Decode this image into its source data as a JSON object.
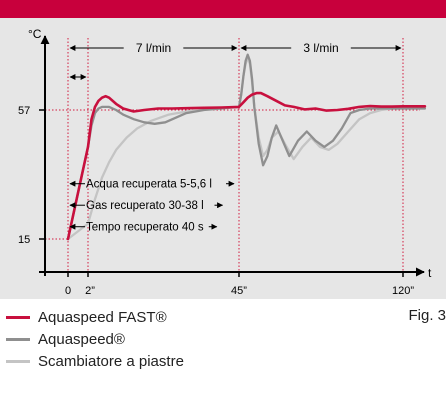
{
  "chart_data": {
    "type": "line",
    "ylabel": "°C",
    "xlabel": "t",
    "x_ticks": [
      {
        "value": 0,
        "label": "0"
      },
      {
        "value": 2,
        "label": "2”"
      },
      {
        "value": 45,
        "label": "45”"
      },
      {
        "value": 120,
        "label": "120”"
      }
    ],
    "y_ticks": [
      {
        "value": 15,
        "label": "15"
      },
      {
        "value": 57,
        "label": "57"
      }
    ],
    "xlim": [
      0,
      130
    ],
    "ylim": [
      0,
      80
    ],
    "flow_rates": [
      {
        "from": 0,
        "to": 45,
        "label": "7 l/min"
      },
      {
        "from": 45,
        "to": 120,
        "label": "3 l/min"
      }
    ],
    "annotations": [
      {
        "text": "Acqua recuperata 5-5,6 l",
        "y": 33
      },
      {
        "text": "Gas recuperato 30-38 l",
        "y": 26
      },
      {
        "text": "Tempo recuperato 40 s",
        "y": 19
      }
    ],
    "series": [
      {
        "name": "Aquaspeed FAST®",
        "color": "#c8103e",
        "x": [
          0,
          1,
          2,
          3,
          4,
          5,
          6,
          7,
          8,
          10,
          12,
          15,
          18,
          22,
          26,
          30,
          35,
          40,
          45,
          47,
          49,
          51,
          53,
          55,
          58,
          62,
          66,
          70,
          75,
          80,
          85,
          90,
          95,
          100,
          105,
          110,
          115,
          120,
          125,
          130
        ],
        "y": [
          15,
          30,
          45,
          54,
          58,
          60,
          61,
          61.5,
          61,
          59,
          57.5,
          56.5,
          57,
          57.5,
          57.5,
          57.6,
          57.7,
          57.8,
          58,
          59.5,
          61,
          62,
          62.5,
          62.5,
          61.5,
          60,
          58.5,
          58,
          57.2,
          57.5,
          56.8,
          57,
          57.4,
          58,
          58.3,
          58.1,
          58.1,
          58.2,
          58.2,
          58.2
        ]
      },
      {
        "name": "Aquaspeed®",
        "color": "#8f8f8f",
        "x": [
          0,
          1,
          2,
          3,
          4,
          5,
          6,
          8,
          10,
          12,
          15,
          18,
          21,
          24,
          27,
          30,
          35,
          40,
          45,
          46,
          47,
          48,
          49,
          50,
          51,
          52,
          54,
          56,
          58,
          60,
          62,
          65,
          68,
          72,
          76,
          80,
          84,
          88,
          92,
          96,
          100,
          105,
          110,
          115,
          120,
          125,
          130
        ],
        "y": [
          15,
          30,
          45,
          52,
          56,
          57.5,
          58,
          58,
          57,
          55.5,
          54,
          53,
          52.5,
          53,
          54.5,
          56,
          57,
          57.5,
          58,
          62,
          68,
          73,
          75,
          73,
          67,
          58,
          46,
          39,
          42,
          48,
          52,
          47,
          42,
          47,
          50,
          47,
          45,
          47,
          51,
          56,
          57,
          57.5,
          57.5,
          57.5,
          57.5,
          57.5,
          57.5
        ]
      },
      {
        "name": "Scambiatore a piastre",
        "color": "#c4c4c4",
        "x": [
          0,
          2,
          4,
          6,
          8,
          10,
          13,
          16,
          20,
          25,
          30,
          35,
          40,
          45,
          46,
          47,
          48,
          49,
          50,
          51,
          52,
          54,
          56,
          58,
          60,
          63,
          66,
          70,
          74,
          78,
          82,
          86,
          90,
          95,
          100,
          105,
          110,
          115,
          120,
          125,
          130
        ],
        "y": [
          15,
          20,
          28,
          35,
          40,
          44,
          48,
          51,
          53.5,
          55.5,
          56.5,
          57.2,
          57.7,
          58,
          62,
          68,
          72,
          74,
          72,
          66,
          58,
          48,
          42,
          44,
          48,
          50,
          46,
          41,
          45,
          48,
          45,
          44,
          46,
          50,
          54,
          56,
          57,
          57.5,
          57.5,
          57.5,
          57.5
        ]
      }
    ]
  },
  "legend": [
    {
      "label": "Aquaspeed FAST®",
      "color": "#c8103e"
    },
    {
      "label": "Aquaspeed®",
      "color": "#8f8f8f"
    },
    {
      "label": "Scambiatore a piastre",
      "color": "#c4c4c4"
    }
  ],
  "figure_label": "Fig. 3",
  "colors": {
    "header": "#c8003c",
    "panel": "#e6e6e6",
    "guide": "#d11a3f"
  }
}
